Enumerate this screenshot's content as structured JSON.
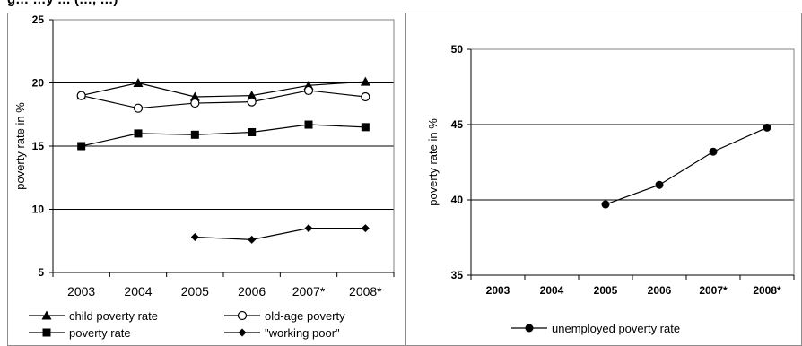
{
  "figure_title": "g… …y … (…, …)",
  "chart_data": [
    {
      "type": "line",
      "ylabel": "poverty rate in %",
      "ylim": [
        5,
        25
      ],
      "yticks": [
        5,
        10,
        15,
        20,
        25
      ],
      "grid": true,
      "legend_position": "bottom",
      "categories": [
        "2003",
        "2004",
        "2005",
        "2006",
        "2007*",
        "2008*"
      ],
      "series": [
        {
          "name": "child poverty rate",
          "marker": "triangle",
          "values": [
            19,
            20,
            18.9,
            19,
            19.8,
            20.1
          ]
        },
        {
          "name": "old-age poverty",
          "marker": "circle-open",
          "values": [
            19,
            18,
            18.4,
            18.5,
            19.4,
            18.9
          ]
        },
        {
          "name": "poverty rate",
          "marker": "square",
          "values": [
            15,
            16,
            15.9,
            16.1,
            16.7,
            16.5
          ]
        },
        {
          "name": "\"working poor\"",
          "marker": "diamond",
          "values": [
            null,
            null,
            7.8,
            7.6,
            8.5,
            8.5
          ]
        }
      ]
    },
    {
      "type": "line",
      "ylabel": "poverty rate in %",
      "ylim": [
        35,
        50
      ],
      "yticks": [
        35,
        40,
        45,
        50
      ],
      "grid": true,
      "legend_position": "bottom",
      "categories": [
        "2003",
        "2004",
        "2005",
        "2006",
        "2007*",
        "2008*"
      ],
      "series": [
        {
          "name": "unemployed poverty rate",
          "marker": "circle",
          "values": [
            null,
            null,
            39.7,
            41,
            43.2,
            44.8
          ]
        }
      ]
    }
  ]
}
